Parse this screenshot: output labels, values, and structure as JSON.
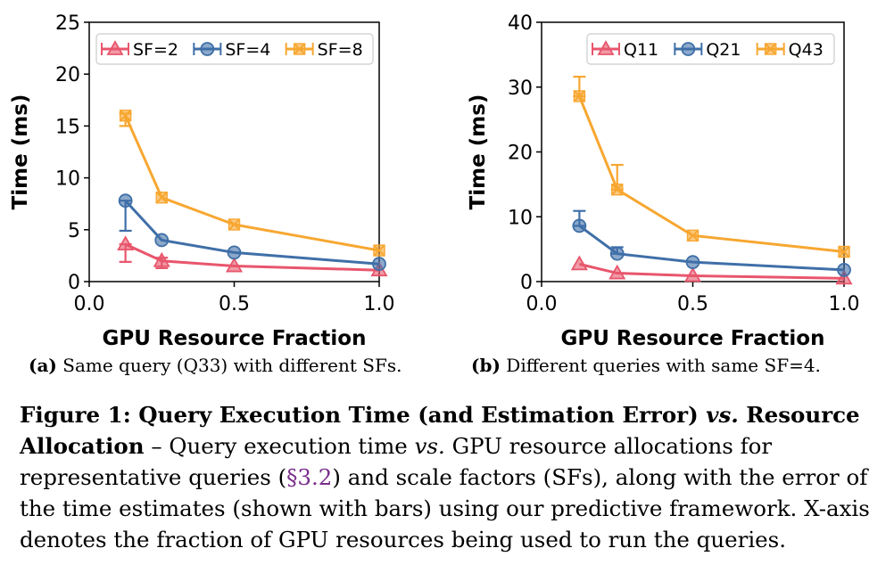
{
  "colors": {
    "red": "#e8566c",
    "blue": "#3f6fa8",
    "orange": "#f7a731",
    "ref": "#7a2d8c"
  },
  "chart_data": [
    {
      "type": "line",
      "xlabel": "GPU Resource Fraction",
      "ylabel": "Time (ms)",
      "xlim": [
        0.0,
        1.0
      ],
      "ylim": [
        0,
        25
      ],
      "xticks": [
        "0.0",
        "0.5",
        "1.0"
      ],
      "yticks": [
        "0",
        "5",
        "10",
        "15",
        "20",
        "25"
      ],
      "legend_position": "top",
      "x": [
        0.125,
        0.25,
        0.5,
        1.0
      ],
      "series": [
        {
          "name": "SF=2",
          "color": "red",
          "marker": "triangle",
          "values": [
            3.6,
            2.0,
            1.5,
            1.1
          ],
          "err_low": [
            1.7,
            0.7,
            0,
            0
          ],
          "err_high": [
            0,
            0.3,
            0,
            0
          ]
        },
        {
          "name": "SF=4",
          "color": "blue",
          "marker": "circle",
          "values": [
            7.8,
            4.0,
            2.8,
            1.7
          ],
          "err_low": [
            2.9,
            0,
            0,
            0
          ],
          "err_high": [
            0,
            0,
            0,
            0
          ]
        },
        {
          "name": "SF=8",
          "color": "orange",
          "marker": "x-square",
          "values": [
            16.0,
            8.1,
            5.5,
            3.0
          ],
          "err_low": [
            1.0,
            0,
            0,
            0
          ],
          "err_high": [
            0.2,
            0,
            0,
            0
          ]
        }
      ]
    },
    {
      "type": "line",
      "xlabel": "GPU Resource Fraction",
      "ylabel": "Time (ms)",
      "xlim": [
        0.0,
        1.0
      ],
      "ylim": [
        0,
        40
      ],
      "xticks": [
        "0.0",
        "0.5",
        "1.0"
      ],
      "yticks": [
        "0",
        "10",
        "20",
        "30",
        "40"
      ],
      "legend_position": "top",
      "x": [
        0.125,
        0.25,
        0.5,
        1.0
      ],
      "series": [
        {
          "name": "Q11",
          "color": "red",
          "marker": "triangle",
          "values": [
            2.7,
            1.3,
            0.9,
            0.5
          ],
          "err_low": [
            0,
            0,
            0,
            0
          ],
          "err_high": [
            0,
            0,
            0,
            0
          ]
        },
        {
          "name": "Q21",
          "color": "blue",
          "marker": "circle",
          "values": [
            8.6,
            4.3,
            3.0,
            1.8
          ],
          "err_low": [
            0,
            0,
            0,
            0
          ],
          "err_high": [
            2.3,
            1.0,
            0,
            0
          ]
        },
        {
          "name": "Q43",
          "color": "orange",
          "marker": "x-square",
          "values": [
            28.6,
            14.2,
            7.1,
            4.6
          ],
          "err_low": [
            0,
            0,
            0,
            0
          ],
          "err_high": [
            3.0,
            3.8,
            0,
            0
          ]
        }
      ]
    }
  ],
  "subcaptions": [
    {
      "label": "(a)",
      "text": " Same query (Q33) with different SFs."
    },
    {
      "label": "(b)",
      "text": " Different queries with same SF=4."
    }
  ],
  "caption": {
    "title": "Figure 1: Query Execution Time (and Estimation Error) ",
    "title_vs": "vs.",
    "title_end": " Resource Allocation",
    "dash": " – ",
    "body_1": "Query execution time ",
    "body_vs": "vs.",
    "body_2": " GPU resource allocations for representative queries (",
    "ref": "§3.2",
    "body_3": ") and scale factors (SFs), along with the error of the time estimates (shown with bars) using our predictive framework. X-axis denotes the fraction of GPU resources being used to run the queries."
  }
}
